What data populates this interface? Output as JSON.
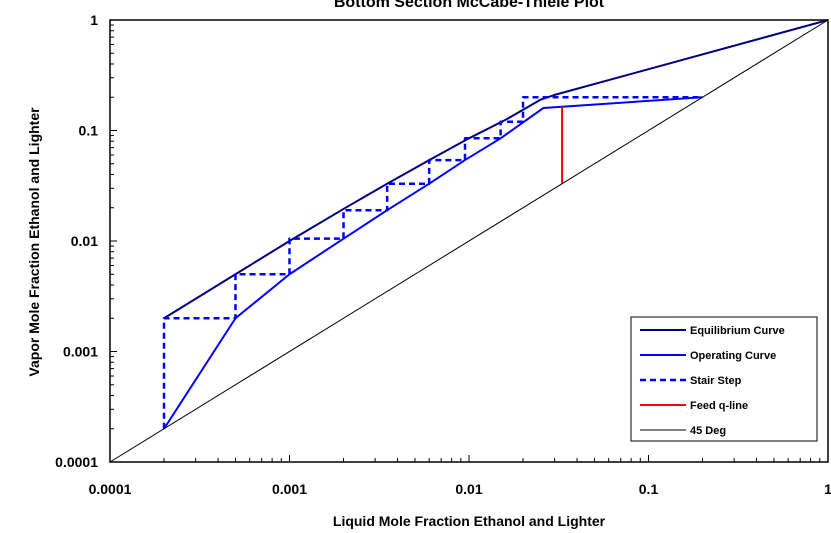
{
  "chart_data": {
    "type": "line",
    "title": "Bottom Section McCabe-Thiele Plot",
    "xlabel": "Liquid Mole Fraction Ethanol and Lighter",
    "ylabel": "Vapor Mole Fraction Ethanol and Lighter",
    "xscale": "log",
    "yscale": "log",
    "xlim": [
      0.0001,
      1
    ],
    "ylim": [
      0.0001,
      1
    ],
    "x_tick_labels": [
      "0.0001",
      "0.001",
      "0.01",
      "0.1",
      "1"
    ],
    "y_tick_labels": [
      "0.0001",
      "0.001",
      "0.01",
      "0.1",
      "1"
    ],
    "grid": false,
    "legend_position": "bottom-right",
    "series": [
      {
        "name": "Equilibrium Curve",
        "color": "#000080",
        "style": "solid",
        "points": [
          [
            0.0002,
            0.002
          ],
          [
            0.0005,
            0.005
          ],
          [
            0.001,
            0.01
          ],
          [
            0.002,
            0.0195
          ],
          [
            0.0035,
            0.033
          ],
          [
            0.006,
            0.054
          ],
          [
            0.01,
            0.085
          ],
          [
            0.016,
            0.125
          ],
          [
            0.025,
            0.19
          ],
          [
            0.03,
            0.21
          ],
          [
            1,
            1
          ]
        ]
      },
      {
        "name": "Operating Curve",
        "color": "#0000ff",
        "style": "solid",
        "points": [
          [
            0.0002,
            0.0002
          ],
          [
            0.0005,
            0.002
          ],
          [
            0.001,
            0.005
          ],
          [
            0.002,
            0.0105
          ],
          [
            0.0035,
            0.019
          ],
          [
            0.006,
            0.033
          ],
          [
            0.0095,
            0.054
          ],
          [
            0.015,
            0.085
          ],
          [
            0.026,
            0.16
          ],
          [
            0.2,
            0.2
          ]
        ]
      },
      {
        "name": "Stair Step",
        "color": "#0000ff",
        "style": "dashed",
        "points": [
          [
            0.0002,
            0.0002
          ],
          [
            0.0002,
            0.002
          ],
          [
            0.0005,
            0.002
          ],
          [
            0.0005,
            0.005
          ],
          [
            0.001,
            0.005
          ],
          [
            0.001,
            0.0105
          ],
          [
            0.002,
            0.0105
          ],
          [
            0.002,
            0.019
          ],
          [
            0.0035,
            0.019
          ],
          [
            0.0035,
            0.033
          ],
          [
            0.006,
            0.033
          ],
          [
            0.006,
            0.054
          ],
          [
            0.0095,
            0.054
          ],
          [
            0.0095,
            0.085
          ],
          [
            0.015,
            0.085
          ],
          [
            0.015,
            0.12
          ],
          [
            0.02,
            0.12
          ],
          [
            0.02,
            0.2
          ],
          [
            0.2,
            0.2
          ]
        ]
      },
      {
        "name": "Feed q-line",
        "color": "#ff0000",
        "style": "solid",
        "points": [
          [
            0.033,
            0.033
          ],
          [
            0.033,
            0.165
          ]
        ]
      },
      {
        "name": "45 Deg",
        "color": "#000000",
        "style": "thin",
        "points": [
          [
            0.0001,
            0.0001
          ],
          [
            1,
            1
          ]
        ]
      }
    ]
  }
}
